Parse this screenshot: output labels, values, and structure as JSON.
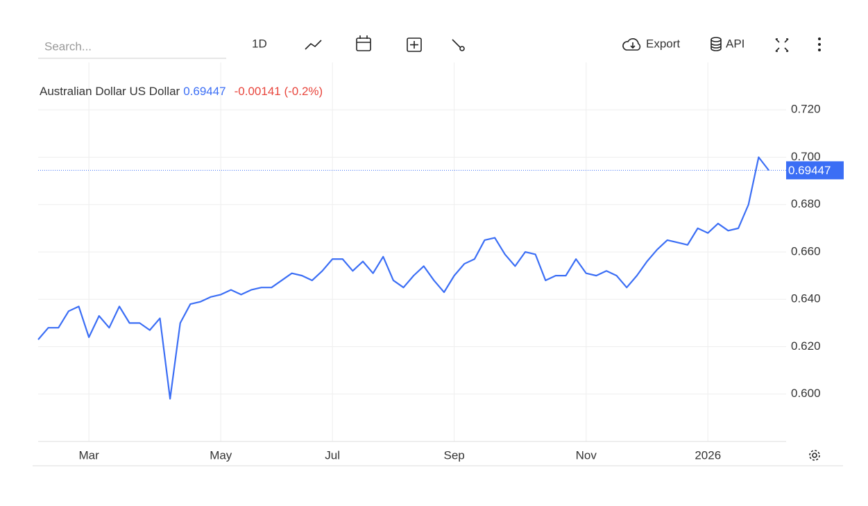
{
  "toolbar": {
    "search_placeholder": "Search...",
    "interval": "1D",
    "export": "Export",
    "api": "API"
  },
  "chart_data": {
    "type": "line",
    "categories": [
      null,
      null,
      null,
      null,
      null,
      "Mar",
      null,
      null,
      null,
      null,
      null,
      null,
      null,
      null,
      null,
      null,
      null,
      null,
      "May",
      null,
      null,
      null,
      null,
      null,
      null,
      null,
      null,
      null,
      null,
      "Jul",
      null,
      null,
      null,
      null,
      null,
      null,
      null,
      null,
      null,
      null,
      null,
      "Sep",
      null,
      null,
      null,
      null,
      null,
      null,
      null,
      null,
      null,
      null,
      null,
      null,
      "Nov",
      null,
      null,
      null,
      null,
      null,
      null,
      null,
      null,
      null,
      null,
      null,
      "2026",
      null,
      null,
      null,
      null,
      null,
      null
    ],
    "series": [
      {
        "name": "Australian Dollar US Dollar",
        "color": "#3b6ef5",
        "values": [
          0.623,
          0.628,
          0.628,
          0.635,
          0.637,
          0.624,
          0.633,
          0.628,
          0.637,
          0.63,
          0.63,
          0.627,
          0.632,
          0.598,
          0.63,
          0.638,
          0.639,
          0.641,
          0.642,
          0.644,
          0.642,
          0.644,
          0.645,
          0.645,
          0.648,
          0.651,
          0.65,
          0.648,
          0.652,
          0.657,
          0.657,
          0.652,
          0.656,
          0.651,
          0.658,
          0.648,
          0.645,
          0.65,
          0.654,
          0.648,
          0.643,
          0.65,
          0.655,
          0.657,
          0.665,
          0.666,
          0.659,
          0.654,
          0.66,
          0.659,
          0.648,
          0.65,
          0.65,
          0.657,
          0.651,
          0.65,
          0.652,
          0.65,
          0.645,
          0.65,
          0.656,
          0.661,
          0.665,
          0.664,
          0.663,
          0.67,
          0.668,
          0.672,
          0.669,
          0.67,
          0.68,
          0.7,
          0.69447
        ]
      }
    ],
    "last_price": 0.69447,
    "last_price_label": "0.69447",
    "change": "-0.00141 (-0.2%)",
    "ylim": [
      0.58,
      0.74
    ],
    "yticks": [
      {
        "value": 0.6,
        "label": "0.600"
      },
      {
        "value": 0.62,
        "label": "0.620"
      },
      {
        "value": 0.64,
        "label": "0.640"
      },
      {
        "value": 0.66,
        "label": "0.660"
      },
      {
        "value": 0.68,
        "label": "0.680"
      },
      {
        "value": 0.7,
        "label": "0.700"
      },
      {
        "value": 0.72,
        "label": "0.720"
      }
    ],
    "grid": true
  }
}
